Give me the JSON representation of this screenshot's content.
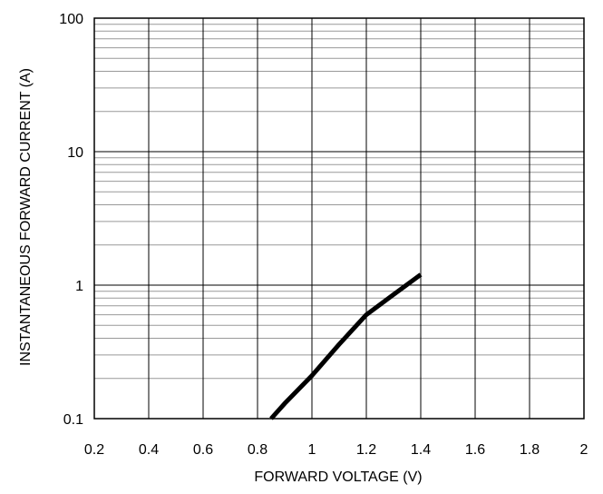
{
  "chart_data": {
    "type": "line",
    "title": "",
    "xlabel": "FORWARD VOLTAGE (V)",
    "ylabel": "INSTANTANEOUS FORWARD CURRENT (A)",
    "xlim": [
      0.2,
      2
    ],
    "ylim": [
      0.1,
      100
    ],
    "yscale": "log",
    "grid": true,
    "x_ticks": [
      "0.2",
      "0.4",
      "0.6",
      "0.8",
      "1",
      "1.2",
      "1.4",
      "1.6",
      "1.8",
      "2"
    ],
    "y_ticks": [
      "0.1",
      "1",
      "10",
      "100"
    ],
    "series": [
      {
        "x": [
          0.85,
          0.9,
          1.0,
          1.1,
          1.2,
          1.3,
          1.4
        ],
        "y": [
          0.1,
          0.13,
          0.21,
          0.36,
          0.6,
          0.85,
          1.2
        ]
      }
    ],
    "line_color": "#000000",
    "grid_color": "#999999"
  }
}
